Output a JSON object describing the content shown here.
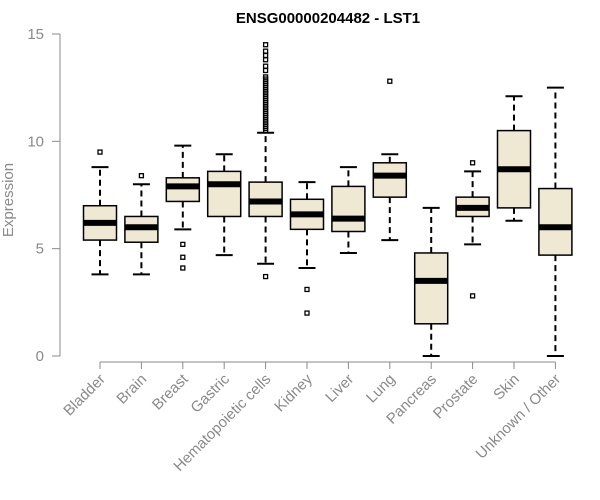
{
  "chart_data": {
    "type": "boxplot",
    "title": "ENSG00000204482 - LST1",
    "xlabel": "",
    "ylabel": "Expression",
    "ylim": [
      0,
      15
    ],
    "yticks": [
      0,
      5,
      10,
      15
    ],
    "box_color": "#efe9d3",
    "categories": [
      "Bladder",
      "Brain",
      "Breast",
      "Gastric",
      "Hematopoietic cells",
      "Kidney",
      "Liver",
      "Lung",
      "Pancreas",
      "Prostate",
      "Skin",
      "Unknown / Other"
    ],
    "boxes": [
      {
        "name": "Bladder",
        "whislo": 3.8,
        "q1": 5.4,
        "med": 6.2,
        "q3": 7.0,
        "whishi": 8.8,
        "fliers": [
          9.5
        ]
      },
      {
        "name": "Brain",
        "whislo": 3.8,
        "q1": 5.3,
        "med": 6.0,
        "q3": 6.5,
        "whishi": 8.0,
        "fliers": [
          8.4
        ]
      },
      {
        "name": "Breast",
        "whislo": 5.9,
        "q1": 7.2,
        "med": 7.9,
        "q3": 8.3,
        "whishi": 9.8,
        "fliers": [
          5.2,
          4.6,
          4.1
        ]
      },
      {
        "name": "Gastric",
        "whislo": 4.7,
        "q1": 6.5,
        "med": 8.0,
        "q3": 8.6,
        "whishi": 9.4,
        "fliers": []
      },
      {
        "name": "Hematopoietic cells",
        "whislo": 4.3,
        "q1": 6.5,
        "med": 7.2,
        "q3": 8.1,
        "whishi": 10.4,
        "fliers": [
          3.7,
          10.5,
          10.6,
          10.7,
          10.8,
          10.9,
          11.0,
          11.1,
          11.2,
          11.3,
          11.4,
          11.5,
          11.6,
          11.7,
          11.8,
          11.9,
          12.0,
          12.1,
          12.2,
          12.3,
          12.4,
          12.5,
          12.6,
          12.7,
          12.8,
          12.9,
          13.0,
          13.3,
          13.5,
          13.8,
          14.0,
          14.2,
          14.5
        ]
      },
      {
        "name": "Kidney",
        "whislo": 4.1,
        "q1": 5.9,
        "med": 6.6,
        "q3": 7.3,
        "whishi": 8.1,
        "fliers": [
          3.1,
          2.0
        ]
      },
      {
        "name": "Liver",
        "whislo": 4.8,
        "q1": 5.8,
        "med": 6.4,
        "q3": 7.9,
        "whishi": 8.8,
        "fliers": []
      },
      {
        "name": "Lung",
        "whislo": 5.4,
        "q1": 7.4,
        "med": 8.4,
        "q3": 9.0,
        "whishi": 9.4,
        "fliers": [
          12.8
        ]
      },
      {
        "name": "Pancreas",
        "whislo": 0.0,
        "q1": 1.5,
        "med": 3.5,
        "q3": 4.8,
        "whishi": 6.9,
        "fliers": []
      },
      {
        "name": "Prostate",
        "whislo": 5.2,
        "q1": 6.5,
        "med": 6.9,
        "q3": 7.4,
        "whishi": 8.6,
        "fliers": [
          9.0,
          2.8
        ]
      },
      {
        "name": "Skin",
        "whislo": 6.3,
        "q1": 6.9,
        "med": 8.7,
        "q3": 10.5,
        "whishi": 12.1,
        "fliers": []
      },
      {
        "name": "Unknown / Other",
        "whislo": 0.0,
        "q1": 4.7,
        "med": 6.0,
        "q3": 7.8,
        "whishi": 12.5,
        "fliers": []
      }
    ]
  }
}
